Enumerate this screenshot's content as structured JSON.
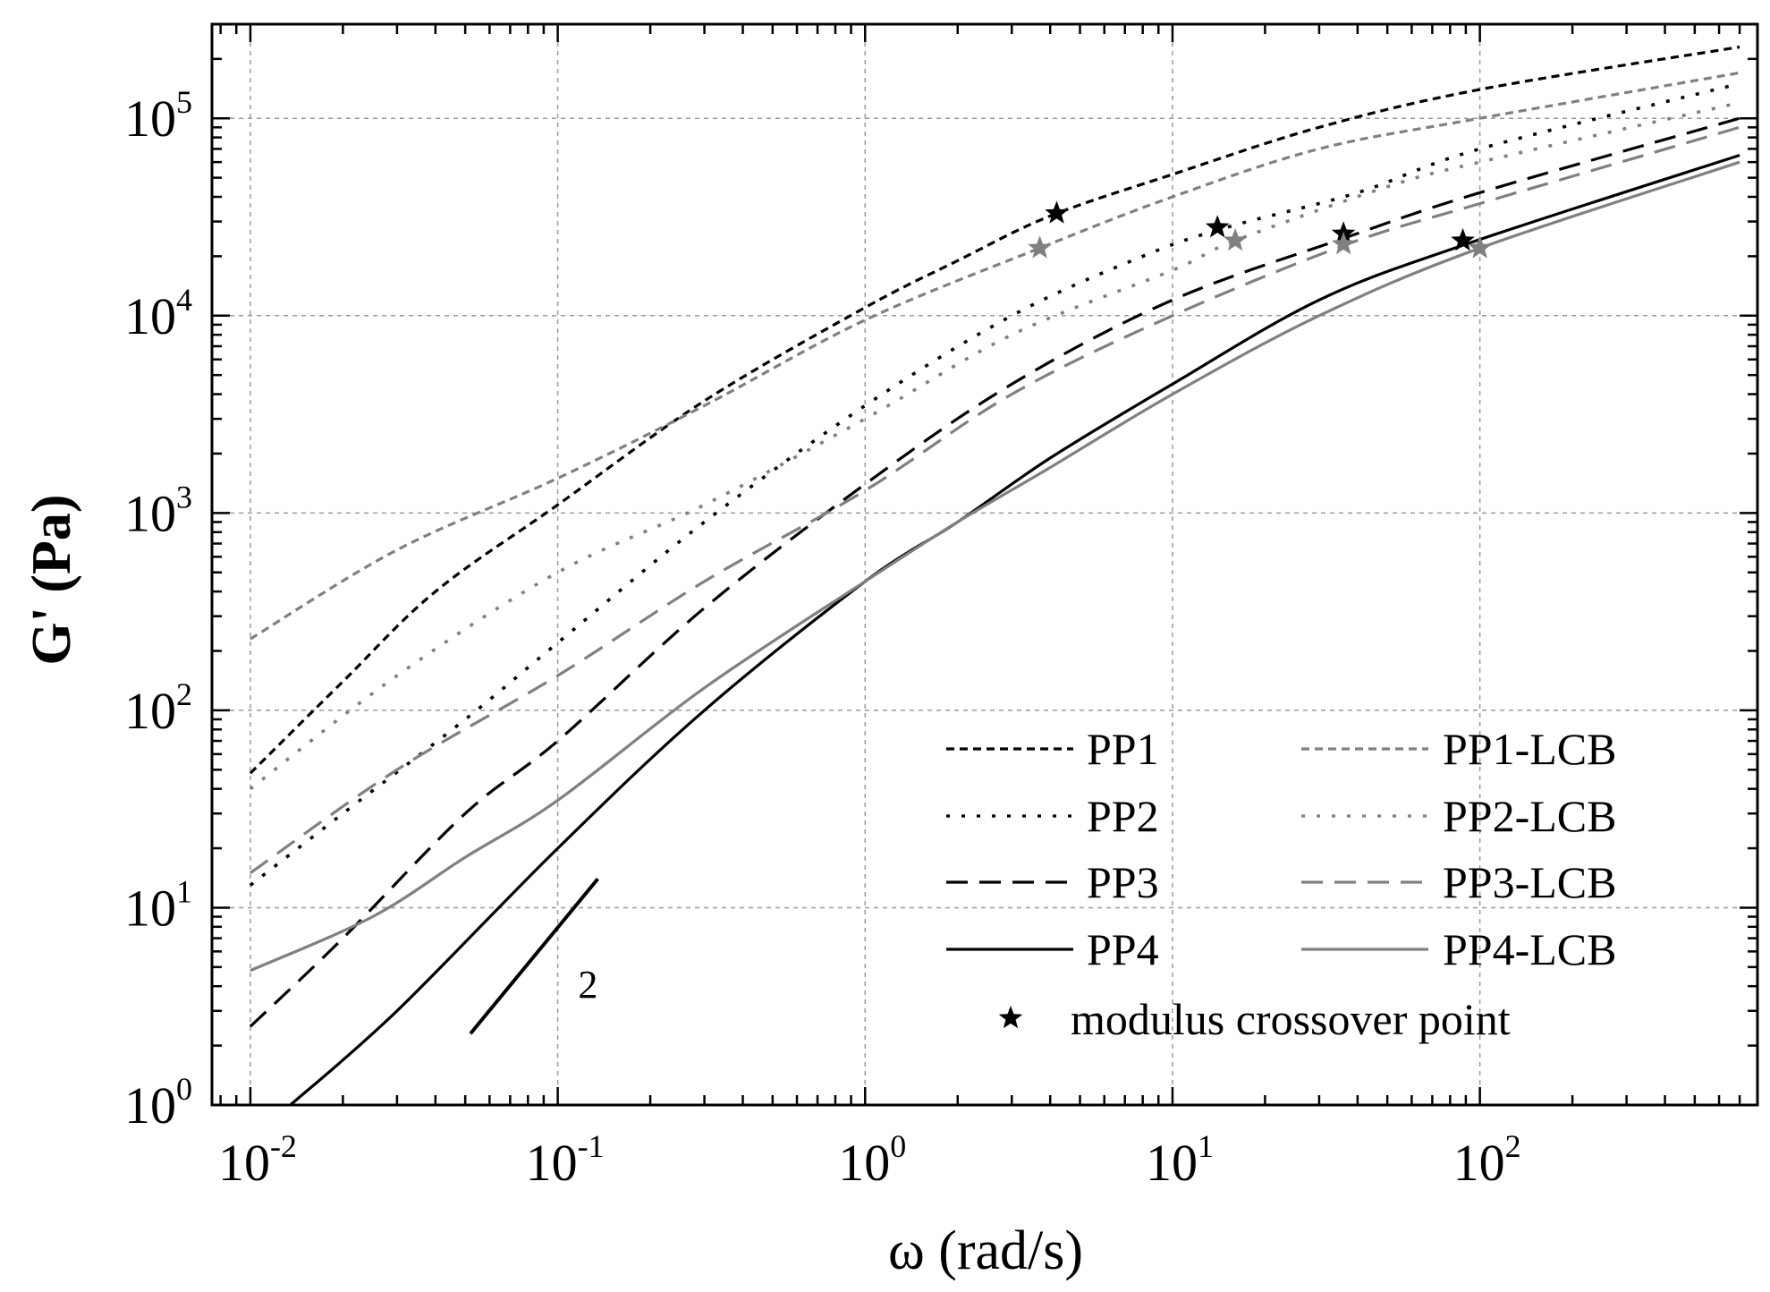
{
  "chart_data": {
    "type": "line",
    "xlabel": "ω (rad/s)",
    "ylabel": "G' (Pa)",
    "x_scale": "log",
    "y_scale": "log",
    "xlim": [
      0.0075,
      800
    ],
    "ylim": [
      1,
      300000
    ],
    "grid": true,
    "legend_placement": "bottom-right",
    "x_ticks": [
      {
        "value": 0.01,
        "base": "10",
        "exp": "-2"
      },
      {
        "value": 0.1,
        "base": "10",
        "exp": "-1"
      },
      {
        "value": 1,
        "base": "10",
        "exp": "0"
      },
      {
        "value": 10,
        "base": "10",
        "exp": "1"
      },
      {
        "value": 100,
        "base": "10",
        "exp": "2"
      }
    ],
    "y_ticks": [
      {
        "value": 1,
        "base": "10",
        "exp": "0"
      },
      {
        "value": 10,
        "base": "10",
        "exp": "1"
      },
      {
        "value": 100,
        "base": "10",
        "exp": "2"
      },
      {
        "value": 1000,
        "base": "10",
        "exp": "3"
      },
      {
        "value": 10000,
        "base": "10",
        "exp": "4"
      },
      {
        "value": 100000,
        "base": "10",
        "exp": "5"
      }
    ],
    "series": [
      {
        "name": "PP1",
        "color": "#000000",
        "dash": "short-dash",
        "legend_col": 0,
        "legend_row": 0,
        "points": [
          [
            0.01,
            48
          ],
          [
            0.02,
            140
          ],
          [
            0.04,
            400
          ],
          [
            0.1,
            1100
          ],
          [
            0.3,
            3700
          ],
          [
            1,
            11000
          ],
          [
            2,
            19000
          ],
          [
            4,
            32000
          ],
          [
            10,
            52000
          ],
          [
            30,
            90000
          ],
          [
            100,
            140000
          ],
          [
            700,
            230000
          ]
        ],
        "crossover": [
          4.2,
          33000
        ]
      },
      {
        "name": "PP2",
        "color": "#000000",
        "dash": "dot",
        "legend_col": 0,
        "legend_row": 1,
        "points": [
          [
            0.01,
            13
          ],
          [
            0.02,
            30
          ],
          [
            0.05,
            90
          ],
          [
            0.1,
            220
          ],
          [
            0.3,
            900
          ],
          [
            1,
            3500
          ],
          [
            3,
            10000
          ],
          [
            8,
            20000
          ],
          [
            15,
            28000
          ],
          [
            40,
            42000
          ],
          [
            100,
            70000
          ],
          [
            700,
            150000
          ]
        ],
        "crossover": [
          14,
          28000
        ]
      },
      {
        "name": "PP3",
        "color": "#000000",
        "dash": "dash",
        "legend_col": 0,
        "legend_row": 2,
        "points": [
          [
            0.01,
            2.5
          ],
          [
            0.02,
            7
          ],
          [
            0.05,
            30
          ],
          [
            0.1,
            70
          ],
          [
            0.3,
            330
          ],
          [
            1,
            1400
          ],
          [
            3,
            4500
          ],
          [
            10,
            12000
          ],
          [
            37,
            25000
          ],
          [
            100,
            42000
          ],
          [
            700,
            100000
          ]
        ],
        "crossover": [
          36,
          26000
        ]
      },
      {
        "name": "PP4",
        "color": "#000000",
        "dash": "solid",
        "legend_col": 0,
        "legend_row": 3,
        "points": [
          [
            0.0135,
            1
          ],
          [
            0.03,
            3
          ],
          [
            0.1,
            20
          ],
          [
            0.3,
            100
          ],
          [
            1,
            450
          ],
          [
            2,
            900
          ],
          [
            4,
            1900
          ],
          [
            10,
            4500
          ],
          [
            30,
            12000
          ],
          [
            90,
            23000
          ],
          [
            700,
            65000
          ]
        ],
        "crossover": [
          88,
          24000
        ]
      },
      {
        "name": "PP1-LCB",
        "color": "#808080",
        "dash": "short-dash",
        "legend_col": 1,
        "legend_row": 0,
        "points": [
          [
            0.01,
            230
          ],
          [
            0.03,
            650
          ],
          [
            0.1,
            1500
          ],
          [
            0.3,
            3500
          ],
          [
            1,
            9500
          ],
          [
            3.7,
            22000
          ],
          [
            10,
            40000
          ],
          [
            30,
            70000
          ],
          [
            100,
            100000
          ],
          [
            700,
            170000
          ]
        ],
        "crossover": [
          3.7,
          22000
        ]
      },
      {
        "name": "PP2-LCB",
        "color": "#808080",
        "dash": "dot",
        "legend_col": 1,
        "legend_row": 1,
        "points": [
          [
            0.01,
            40
          ],
          [
            0.03,
            150
          ],
          [
            0.1,
            500
          ],
          [
            0.3,
            1100
          ],
          [
            1,
            3000
          ],
          [
            3,
            8000
          ],
          [
            10,
            17000
          ],
          [
            16,
            24000
          ],
          [
            50,
            45000
          ],
          [
            100,
            60000
          ],
          [
            700,
            120000
          ]
        ],
        "crossover": [
          16,
          24000
        ]
      },
      {
        "name": "PP3-LCB",
        "color": "#808080",
        "dash": "dash",
        "legend_col": 1,
        "legend_row": 2,
        "points": [
          [
            0.01,
            15
          ],
          [
            0.03,
            50
          ],
          [
            0.1,
            150
          ],
          [
            0.3,
            450
          ],
          [
            1,
            1300
          ],
          [
            3,
            4000
          ],
          [
            10,
            10000
          ],
          [
            37,
            23000
          ],
          [
            100,
            37000
          ],
          [
            700,
            90000
          ]
        ],
        "crossover": [
          36,
          23000
        ]
      },
      {
        "name": "PP4-LCB",
        "color": "#808080",
        "dash": "solid",
        "legend_col": 1,
        "legend_row": 3,
        "points": [
          [
            0.01,
            4.8
          ],
          [
            0.025,
            9
          ],
          [
            0.05,
            18
          ],
          [
            0.1,
            35
          ],
          [
            0.3,
            130
          ],
          [
            1,
            450
          ],
          [
            2,
            900
          ],
          [
            4,
            1700
          ],
          [
            10,
            4000
          ],
          [
            30,
            10000
          ],
          [
            100,
            22000
          ],
          [
            700,
            60000
          ]
        ],
        "crossover": [
          100,
          22000
        ]
      }
    ],
    "crossover_legend": "modulus crossover point",
    "slope_annotation": {
      "label": "2",
      "start": [
        0.052,
        2.3
      ],
      "end": [
        0.135,
        14
      ]
    }
  }
}
